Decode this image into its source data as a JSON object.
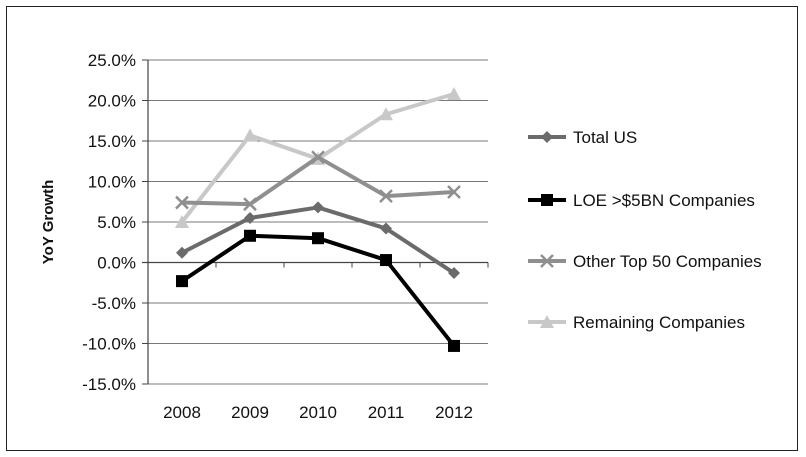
{
  "chart_data": {
    "type": "line",
    "title": "",
    "xlabel": "",
    "ylabel": "YoY Growth",
    "categories": [
      "2008",
      "2009",
      "2010",
      "2011",
      "2012"
    ],
    "ylim": [
      -15,
      25
    ],
    "y_ticks": [
      25,
      20,
      15,
      10,
      5,
      0,
      -5,
      -10,
      -15
    ],
    "y_tick_labels": [
      "25.0%",
      "20.0%",
      "15.0%",
      "10.0%",
      "5.0%",
      "0.0%",
      "-5.0%",
      "-10.0%",
      "-15.0%"
    ],
    "grid": "horizontal",
    "legend_position": "right",
    "series": [
      {
        "name": "Total US",
        "values": [
          1.2,
          5.5,
          6.8,
          4.2,
          -1.3
        ],
        "color": "#6b6b6b",
        "marker": "diamond"
      },
      {
        "name": "LOE >$5BN Companies",
        "values": [
          -2.3,
          3.3,
          3.0,
          0.3,
          -10.3
        ],
        "color": "#000000",
        "marker": "square"
      },
      {
        "name": "Other Top 50 Companies",
        "values": [
          7.4,
          7.2,
          13.0,
          8.2,
          8.7
        ],
        "color": "#8f8f8f",
        "marker": "x"
      },
      {
        "name": "Remaining Companies",
        "values": [
          5.0,
          15.7,
          12.8,
          18.3,
          20.8
        ],
        "color": "#c8c8c8",
        "marker": "triangle"
      }
    ]
  }
}
